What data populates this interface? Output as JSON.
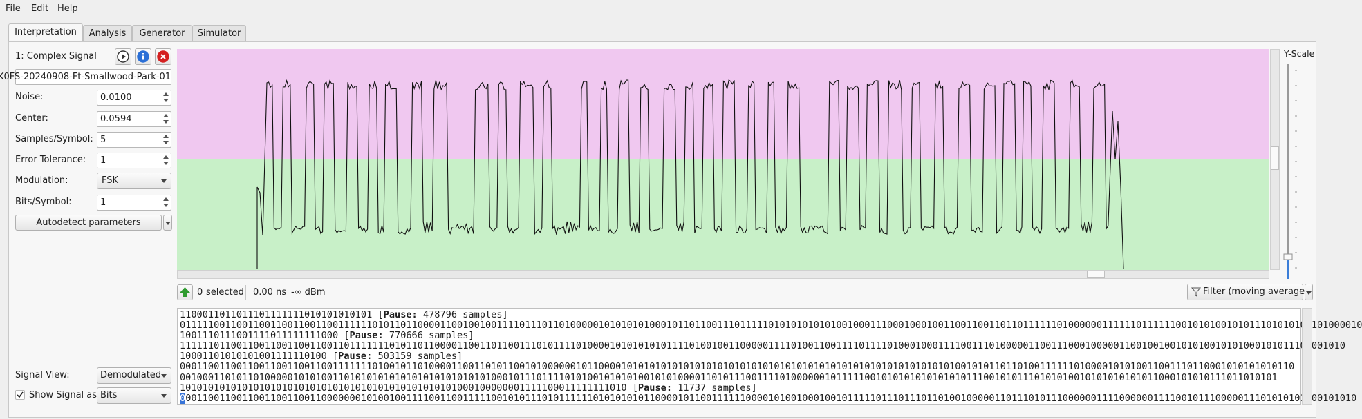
{
  "menu": [
    "File",
    "Edit",
    "Help"
  ],
  "tabs": [
    "Interpretation",
    "Analysis",
    "Generator",
    "Simulator"
  ],
  "signal": {
    "title": "1:  Complex Signal",
    "file": "K0FS-20240908-Ft-Smallwood-Park-01"
  },
  "params": [
    {
      "label": "Noise:",
      "value": "0.0100",
      "kind": "spin"
    },
    {
      "label": "Center:",
      "value": "0.0594",
      "kind": "spin"
    },
    {
      "label": "Samples/Symbol:",
      "value": "5",
      "kind": "spin"
    },
    {
      "label": "Error Tolerance:",
      "value": "1",
      "kind": "spin"
    },
    {
      "label": "Modulation:",
      "value": "FSK",
      "kind": "combo"
    },
    {
      "label": "Bits/Symbol:",
      "value": "1",
      "kind": "spin"
    }
  ],
  "autodetect": "Autodetect parameters",
  "y_scale": "Y-Scale",
  "status": {
    "count": "0",
    "selected": "selected",
    "time": "0.00 ns",
    "power": "-∞ dBm",
    "filter": "Filter (moving average)"
  },
  "output": {
    "lines": [
      [
        {
          "text": "1100011011011101111111010101010101 ["
        },
        {
          "text": "Pause:",
          "bold": true
        },
        {
          "text": " 478796 samples]"
        }
      ],
      [
        {
          "text": "01111100110011001100110011001111110101101100001100100100111101110110100000101010101000101101100111011111010101010101001000111000100010011001100110110111111010000001111110111111001010100101011101010101101000010"
        }
      ],
      [
        {
          "text": "1001110111001111011111111000 ["
        },
        {
          "text": "Pause:",
          "bold": true
        },
        {
          "text": " 770666 samples]"
        }
      ],
      [
        {
          "text": "11111101100110011001100110011011111110101101100001100110110011101011110100001010101010111101001001100000111101001100111101111010001000111100111010000011001110001000001100100100101010010101000101011101001010"
        }
      ],
      [
        {
          "text": "10001101010101001111110100 ["
        },
        {
          "text": "Pause:",
          "bold": true
        },
        {
          "text": " 503159 samples]"
        }
      ],
      [
        {
          "text": "00011001100110011001100110011111110100101101000011001101011001010000001011000010101010101010101010101010101010101010101010101010101010101001010110110100111111010000101010011001110110001010101010110"
        }
      ],
      [
        {
          "text": "00100011010110100000101010011010101010101010101010101010001011101111010100101010100101010000110101110011110100000010111110010101010101010101110010101110101010010101010101011000101010111011010101"
        }
      ],
      [
        {
          "text": "1010101010101010101010101010101010101010101010101000100000001111100011111111010 ["
        },
        {
          "text": "Pause:",
          "bold": true
        },
        {
          "text": " 11737 samples]"
        }
      ],
      [
        {
          "text": "0",
          "highlight": true
        },
        {
          "text": "001100110011001100110011000000010100100111100110011111001010111010111111010101010110000101100111111000010100100010010111110111011101101001000001101110101110000001111000000111100101110000011101010101000101010"
        }
      ]
    ]
  },
  "view": {
    "signal_view_label": "Signal View:",
    "signal_view": "Demodulated",
    "show_as_label": "Show Signal as",
    "show_as": "Bits"
  }
}
